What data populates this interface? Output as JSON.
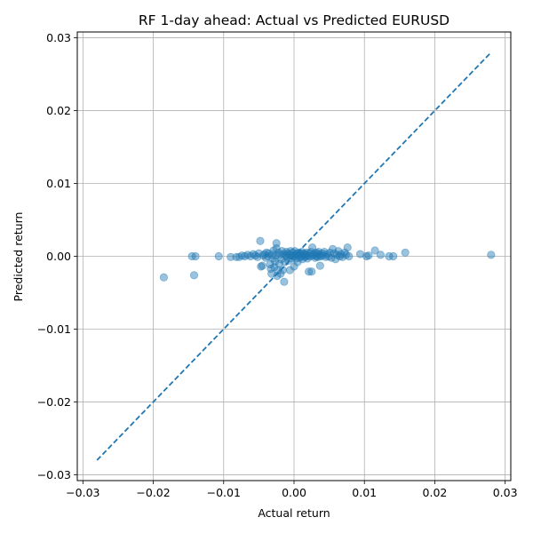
{
  "chart_data": {
    "type": "scatter",
    "title": "RF 1-day ahead: Actual vs Predicted EURUSD",
    "xlabel": "Actual return",
    "ylabel": "Predicted return",
    "xlim": [
      -0.0308,
      0.0308
    ],
    "ylim": [
      -0.0308,
      0.0308
    ],
    "x_ticks": [
      -0.03,
      -0.02,
      -0.01,
      0.0,
      0.01,
      0.02,
      0.03
    ],
    "y_ticks": [
      -0.03,
      -0.02,
      -0.01,
      0.0,
      0.01,
      0.02,
      0.03
    ],
    "x_tick_labels": [
      "−0.03",
      "−0.02",
      "−0.01",
      "0.00",
      "0.01",
      "0.02",
      "0.03"
    ],
    "y_tick_labels": [
      "−0.03",
      "−0.02",
      "−0.01",
      "0.00",
      "0.01",
      "0.02",
      "0.03"
    ],
    "grid": true,
    "point_color": "#1f77b4",
    "point_alpha": 0.45,
    "reference_line": {
      "style": "dashed",
      "color": "#1f77b4",
      "from": [
        -0.028,
        -0.028
      ],
      "to": [
        0.028,
        0.028
      ]
    },
    "points": [
      [
        -0.0185,
        -0.0029
      ],
      [
        -0.0145,
        0.0
      ],
      [
        -0.0142,
        -0.0026
      ],
      [
        -0.014,
        0.0
      ],
      [
        -0.0107,
        0.0
      ],
      [
        -0.009,
        -0.0001
      ],
      [
        -0.0082,
        -0.0001
      ],
      [
        -0.0078,
        -0.0001
      ],
      [
        -0.0074,
        0.0001
      ],
      [
        -0.007,
        0.0
      ],
      [
        -0.0066,
        0.0002
      ],
      [
        -0.0062,
        0.0
      ],
      [
        -0.0058,
        0.0003
      ],
      [
        -0.0055,
        0.0001
      ],
      [
        -0.0052,
        -0.0001
      ],
      [
        -0.005,
        0.0004
      ],
      [
        -0.0048,
        0.0021
      ],
      [
        -0.0047,
        -0.0014
      ],
      [
        -0.0045,
        -0.0013
      ],
      [
        -0.0044,
        0.0001
      ],
      [
        -0.0042,
        0.0003
      ],
      [
        -0.004,
        -0.0002
      ],
      [
        -0.0039,
        0.0005
      ],
      [
        -0.0037,
        0.0
      ],
      [
        -0.0036,
        0.0004
      ],
      [
        -0.0034,
        -0.0011
      ],
      [
        -0.0033,
        -0.0017
      ],
      [
        -0.0032,
        -0.0024
      ],
      [
        -0.0031,
        0.0002
      ],
      [
        -0.003,
        -0.0003
      ],
      [
        -0.0029,
        0.0008
      ],
      [
        -0.0028,
        -0.0015
      ],
      [
        -0.0027,
        -0.0007
      ],
      [
        -0.0026,
        0.0001
      ],
      [
        -0.0025,
        0.0018
      ],
      [
        -0.0025,
        0.0011
      ],
      [
        -0.0024,
        -0.0027
      ],
      [
        -0.0023,
        -0.0019
      ],
      [
        -0.0022,
        0.0005
      ],
      [
        -0.0021,
        -0.001
      ],
      [
        -0.002,
        0.0002
      ],
      [
        -0.0019,
        -0.0024
      ],
      [
        -0.0018,
        -0.0004
      ],
      [
        -0.0017,
        0.0007
      ],
      [
        -0.0016,
        -0.0019
      ],
      [
        -0.0015,
        0.0003
      ],
      [
        -0.0014,
        -0.0035
      ],
      [
        -0.0013,
        -0.0008
      ],
      [
        -0.0012,
        0.0001
      ],
      [
        -0.0011,
        0.0006
      ],
      [
        -0.001,
        -0.0001
      ],
      [
        -0.0009,
        0.0004
      ],
      [
        -0.0008,
        -0.0006
      ],
      [
        -0.0007,
        0.0002
      ],
      [
        -0.0006,
        -0.0019
      ],
      [
        -0.0005,
        0.0007
      ],
      [
        -0.0004,
        0.0001
      ],
      [
        -0.0003,
        -0.0003
      ],
      [
        -0.0002,
        0.0005
      ],
      [
        -0.0001,
        0.0
      ],
      [
        0.0,
        -0.0014
      ],
      [
        0.0001,
        0.0007
      ],
      [
        0.0002,
        0.0002
      ],
      [
        0.0003,
        -0.0003
      ],
      [
        0.0004,
        0.0004
      ],
      [
        0.0005,
        -0.0008
      ],
      [
        0.0006,
        0.0001
      ],
      [
        0.0007,
        0.0005
      ],
      [
        0.0008,
        -0.0002
      ],
      [
        0.0009,
        0.0003
      ],
      [
        0.001,
        0.0
      ],
      [
        0.0011,
        0.0006
      ],
      [
        0.0012,
        -0.0004
      ],
      [
        0.0013,
        0.0002
      ],
      [
        0.0014,
        0.0004
      ],
      [
        0.0015,
        -0.0001
      ],
      [
        0.0016,
        0.0003
      ],
      [
        0.0017,
        0.0
      ],
      [
        0.0018,
        0.0005
      ],
      [
        0.0019,
        -0.0003
      ],
      [
        0.002,
        0.0001
      ],
      [
        0.0021,
        -0.0021
      ],
      [
        0.0022,
        0.0004
      ],
      [
        0.0023,
        0.0
      ],
      [
        0.0024,
        0.0006
      ],
      [
        0.0025,
        -0.0021
      ],
      [
        0.0026,
        0.0012
      ],
      [
        0.0027,
        0.0001
      ],
      [
        0.0028,
        0.0003
      ],
      [
        0.003,
        -0.0002
      ],
      [
        0.0031,
        0.0005
      ],
      [
        0.0032,
        0.0
      ],
      [
        0.0033,
        0.0004
      ],
      [
        0.0034,
        -0.0001
      ],
      [
        0.0035,
        0.0006
      ],
      [
        0.0036,
        0.0002
      ],
      [
        0.0037,
        -0.0013
      ],
      [
        0.0038,
        0.0
      ],
      [
        0.004,
        0.0004
      ],
      [
        0.0041,
        0.0001
      ],
      [
        0.0043,
        0.0006
      ],
      [
        0.0045,
        -0.0001
      ],
      [
        0.0047,
        0.0003
      ],
      [
        0.0049,
        0.0
      ],
      [
        0.0051,
        0.0005
      ],
      [
        0.0053,
        -0.0002
      ],
      [
        0.0055,
        0.001
      ],
      [
        0.0057,
        0.0004
      ],
      [
        0.0059,
        -0.0004
      ],
      [
        0.0061,
        0.0002
      ],
      [
        0.0063,
        0.0007
      ],
      [
        0.0065,
        0.0
      ],
      [
        0.0067,
        0.0003
      ],
      [
        0.0069,
        -0.0001
      ],
      [
        0.0072,
        0.0005
      ],
      [
        0.0074,
        0.0002
      ],
      [
        0.0076,
        0.0012
      ],
      [
        0.0078,
        0.0
      ],
      [
        0.0094,
        0.0003
      ],
      [
        0.0103,
        0.0
      ],
      [
        0.0106,
        0.0001
      ],
      [
        0.0115,
        0.0008
      ],
      [
        0.0123,
        0.0002
      ],
      [
        0.0135,
        0.0
      ],
      [
        0.0141,
        0.0
      ],
      [
        0.0158,
        0.0005
      ],
      [
        0.028,
        0.0002
      ]
    ]
  }
}
